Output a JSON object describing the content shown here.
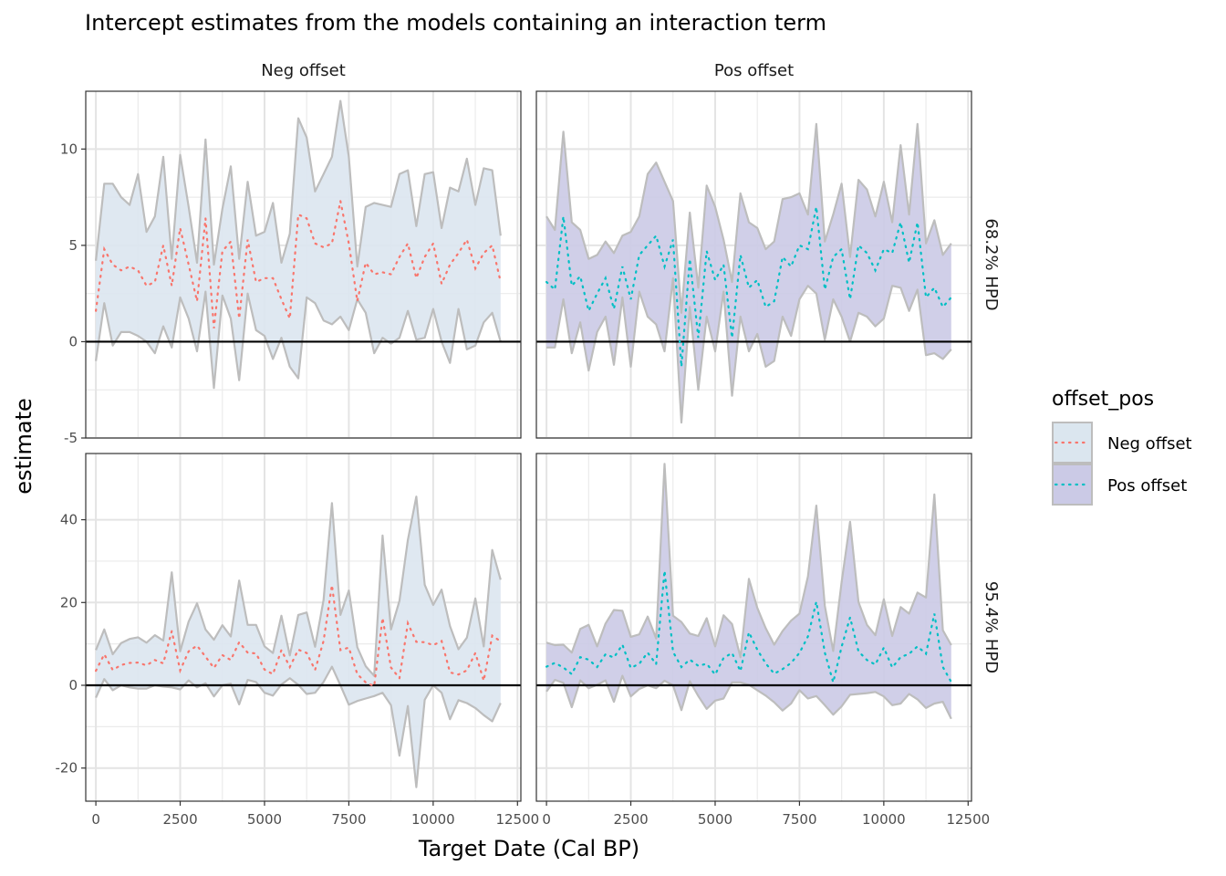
{
  "chart_data": {
    "type": "area",
    "title": "Intercept estimates from the models containing an interaction term",
    "xlabel": "Target Date (Cal BP)",
    "ylabel": "estimate",
    "col_facets": [
      "Neg offset",
      "Pos offset"
    ],
    "row_facets": [
      "68.2% HPD",
      "95.4% HPD"
    ],
    "xlim": [
      -300,
      12600
    ],
    "x_ticks": [
      "0",
      "2500",
      "5000",
      "7500",
      "10000",
      "12500"
    ],
    "grid": true,
    "hline_y": 0,
    "legend": {
      "title": "offset_pos",
      "placement": "right",
      "entries": [
        {
          "label": "Neg offset",
          "fill": "#dbe6ef",
          "line": "#f8766d"
        },
        {
          "label": "Pos offset",
          "fill": "#cbcae6",
          "line": "#00bfc4"
        }
      ]
    },
    "colors": {
      "band_stroke": "#bdbdbd",
      "neg_line": "#f8766d",
      "pos_line": "#00bfc4",
      "neg_fill": "#dbe6ef",
      "pos_fill": "#cbcae6",
      "zero_line": "#000000"
    },
    "panels": [
      {
        "row": 0,
        "col": 0,
        "series": "Neg offset",
        "ylim": [
          -5,
          13
        ],
        "y_ticks": [
          "-5",
          "0",
          "5",
          "10"
        ],
        "x": [
          0,
          250,
          500,
          750,
          1000,
          1250,
          1500,
          1750,
          2000,
          2250,
          2500,
          2750,
          3000,
          3250,
          3500,
          3750,
          4000,
          4250,
          4500,
          4750,
          5000,
          5250,
          5500,
          5750,
          6000,
          6250,
          6500,
          6750,
          7000,
          7250,
          7500,
          7750,
          8000,
          8250,
          8500,
          8750,
          9000,
          9250,
          9500,
          9750,
          10000,
          10250,
          10500,
          10750,
          11000,
          11250,
          11500,
          11750,
          12000
        ],
        "lower": [
          -1,
          2,
          -0.2,
          0.5,
          0.5,
          0.3,
          0,
          -0.6,
          0.8,
          -0.3,
          2.3,
          1.2,
          -0.5,
          2.6,
          -2.4,
          2.4,
          1.2,
          -2,
          2.5,
          0.6,
          0.3,
          -0.9,
          0.2,
          -1.3,
          -1.9,
          2.3,
          2.0,
          1.1,
          0.9,
          1.3,
          0.6,
          2.2,
          1.5,
          -0.6,
          0.2,
          -0.1,
          0.2,
          1.6,
          0.1,
          0.2,
          1.7,
          0,
          -1.1,
          1.7,
          -0.4,
          -0.2,
          1,
          1.5,
          0
        ],
        "upper": [
          4.2,
          8.2,
          8.2,
          7.5,
          7.1,
          8.7,
          5.7,
          6.5,
          9.6,
          4.3,
          9.7,
          7,
          4.1,
          10.5,
          4,
          6.9,
          9.1,
          4.3,
          8.3,
          5.5,
          5.7,
          7.2,
          4.1,
          5.6,
          11.6,
          10.6,
          7.8,
          8.7,
          9.6,
          12.5,
          9.6,
          3.9,
          7,
          7.2,
          7.1,
          7,
          8.7,
          8.9,
          6,
          8.7,
          8.8,
          5.9,
          8,
          7.8,
          9.5,
          7.1,
          9,
          8.9,
          5.5
        ],
        "mid": [
          1.6,
          4.8,
          4.0,
          3.7,
          3.9,
          3.7,
          2.9,
          3.1,
          5.0,
          2.9,
          5.9,
          4.0,
          2.1,
          6.4,
          0.7,
          4.7,
          5.2,
          1.2,
          5.3,
          3.1,
          3.3,
          3.3,
          2.2,
          1.2,
          6.6,
          6.4,
          5.1,
          4.9,
          5.1,
          7.3,
          5.1,
          2.1,
          4.1,
          3.5,
          3.6,
          3.5,
          4.4,
          5.1,
          3.3,
          4.4,
          5.1,
          3.0,
          4.0,
          4.6,
          5.3,
          3.8,
          4.6,
          5.0,
          3.1
        ]
      },
      {
        "row": 0,
        "col": 1,
        "series": "Pos offset",
        "ylim": [
          -5,
          13
        ],
        "y_ticks": [
          "-5",
          "0",
          "5",
          "10"
        ],
        "x": [
          0,
          250,
          500,
          750,
          1000,
          1250,
          1500,
          1750,
          2000,
          2250,
          2500,
          2750,
          3000,
          3250,
          3500,
          3750,
          4000,
          4250,
          4500,
          4750,
          5000,
          5250,
          5500,
          5750,
          6000,
          6250,
          6500,
          6750,
          7000,
          7250,
          7500,
          7750,
          8000,
          8250,
          8500,
          8750,
          9000,
          9250,
          9500,
          9750,
          10000,
          10250,
          10500,
          10750,
          11000,
          11250,
          11500,
          11750,
          12000
        ],
        "lower": [
          -0.3,
          -0.3,
          2.2,
          -0.6,
          1,
          -1.5,
          0.5,
          1.3,
          -1.2,
          2.3,
          -1.3,
          2.6,
          1.3,
          0.9,
          -0.5,
          3.3,
          -4.2,
          1.8,
          -2.5,
          1.3,
          -0.5,
          2.6,
          -2.8,
          1.3,
          -0.5,
          0.4,
          -1.3,
          -1.0,
          1.3,
          0.3,
          2.2,
          2.9,
          2.5,
          0.1,
          2.2,
          1.3,
          0,
          1.5,
          1.3,
          0.8,
          1.2,
          2.9,
          2.8,
          1.6,
          2.7,
          -0.7,
          -0.6,
          -0.9,
          -0.4
        ],
        "upper": [
          6.5,
          5.8,
          10.9,
          6.2,
          5.8,
          4.3,
          4.5,
          5.2,
          4.6,
          5.5,
          5.7,
          6.5,
          8.7,
          9.3,
          8.3,
          7.3,
          1.5,
          6.7,
          2.8,
          8.1,
          7,
          5.3,
          3.1,
          7.7,
          6.2,
          5.9,
          4.8,
          5.2,
          7.4,
          7.5,
          7.7,
          6.6,
          11.3,
          5.2,
          6.6,
          8.2,
          4.4,
          8.4,
          7.9,
          6.5,
          8.3,
          6.2,
          10.2,
          6.6,
          11.3,
          5.1,
          6.3,
          4.5,
          5.1
        ],
        "mid": [
          3.1,
          2.7,
          6.5,
          2.9,
          3.4,
          1.6,
          2.5,
          3.3,
          1.7,
          3.9,
          2.2,
          4.5,
          5.0,
          5.5,
          3.9,
          5.3,
          -1.3,
          4.3,
          0.2,
          4.7,
          3.2,
          4.0,
          0.2,
          4.5,
          2.8,
          3.2,
          1.8,
          2.1,
          4.4,
          3.9,
          5.0,
          4.8,
          7.0,
          2.7,
          4.4,
          4.8,
          2.2,
          5.0,
          4.6,
          3.7,
          4.8,
          4.6,
          6.2,
          4.1,
          6.2,
          2.3,
          2.8,
          1.8,
          2.3
        ]
      },
      {
        "row": 1,
        "col": 0,
        "series": "Neg offset",
        "ylim": [
          -28,
          56
        ],
        "y_ticks": [
          "-20",
          "0",
          "20",
          "40"
        ],
        "x": [
          0,
          250,
          500,
          750,
          1000,
          1250,
          1500,
          1750,
          2000,
          2250,
          2500,
          2750,
          3000,
          3250,
          3500,
          3750,
          4000,
          4250,
          4500,
          4750,
          5000,
          5250,
          5500,
          5750,
          6000,
          6250,
          6500,
          6750,
          7000,
          7250,
          7500,
          7750,
          8000,
          8250,
          8500,
          8750,
          9000,
          9250,
          9500,
          9750,
          10000,
          10250,
          10500,
          10750,
          11000,
          11250,
          11500,
          11750,
          12000
        ],
        "lower": [
          -3,
          1.5,
          -1.2,
          0,
          -0.5,
          -0.8,
          -0.8,
          0,
          -0.3,
          -0.5,
          -1,
          1.2,
          -0.5,
          0.5,
          -2.7,
          0,
          0.4,
          -4.6,
          1.3,
          0.8,
          -1.8,
          -2.5,
          0.2,
          1.7,
          0.1,
          -2.1,
          -1.8,
          0.8,
          4.5,
          0,
          -4.7,
          -3.8,
          -3.2,
          -2.6,
          -1.8,
          -4.8,
          -17,
          -5,
          -24.6,
          -3.5,
          0,
          -1.8,
          -8.2,
          -3.6,
          -4.3,
          -5.5,
          -7.2,
          -8.7,
          -4.3
        ],
        "upper": [
          8.5,
          13.5,
          7.5,
          10.2,
          11.2,
          11.6,
          10.3,
          12.1,
          10.8,
          27.3,
          8.2,
          15.4,
          19.8,
          13.5,
          11.0,
          14.5,
          11.8,
          25.3,
          14.6,
          14.6,
          9.4,
          7.8,
          16.8,
          7.2,
          17.0,
          17.6,
          9.3,
          20.6,
          44.0,
          17.0,
          22.9,
          9.2,
          4.6,
          2.3,
          36.2,
          13.5,
          20.4,
          35.1,
          45.6,
          24.3,
          19.4,
          23.1,
          14.3,
          8.7,
          11.5,
          21.0,
          9.4,
          32.7,
          25.5
        ],
        "mid": [
          3.5,
          7.5,
          3.7,
          4.9,
          5.4,
          5.5,
          4.8,
          6.1,
          5.3,
          13.1,
          3.6,
          8.2,
          9.6,
          6.9,
          4.2,
          7.3,
          6.1,
          10.4,
          7.9,
          7.7,
          3.8,
          2.7,
          8.5,
          4.4,
          8.6,
          7.8,
          3.7,
          10.7,
          24.2,
          8.5,
          9.1,
          2.7,
          0.7,
          -0.2,
          16.3,
          4.3,
          1.7,
          15.0,
          10.5,
          10.4,
          9.7,
          10.7,
          3.1,
          2.6,
          3.6,
          7.8,
          1.1,
          12.0,
          10.6
        ]
      },
      {
        "row": 1,
        "col": 1,
        "series": "Pos offset",
        "ylim": [
          -28,
          56
        ],
        "y_ticks": [
          "-20",
          "0",
          "20",
          "40"
        ],
        "x": [
          0,
          250,
          500,
          750,
          1000,
          1250,
          1500,
          1750,
          2000,
          2250,
          2500,
          2750,
          3000,
          3250,
          3500,
          3750,
          4000,
          4250,
          4500,
          4750,
          5000,
          5250,
          5500,
          5750,
          6000,
          6250,
          6500,
          6750,
          7000,
          7250,
          7500,
          7750,
          8000,
          8250,
          8500,
          8750,
          9000,
          9250,
          9500,
          9750,
          10000,
          10250,
          10500,
          10750,
          11000,
          11250,
          11500,
          11750,
          12000
        ],
        "lower": [
          -1.5,
          1.3,
          0.6,
          -5.3,
          1.2,
          -0.7,
          0.1,
          1.2,
          -4.0,
          2.3,
          -2.7,
          -0.9,
          0,
          -0.7,
          1.1,
          0.0,
          -6.0,
          1.0,
          -2.6,
          -5.7,
          -3.7,
          -3.2,
          0.7,
          0.7,
          0.1,
          -1.2,
          -2.5,
          -4.1,
          -6.1,
          -4.4,
          -1.2,
          -3.2,
          -2.6,
          -4.8,
          -7.1,
          -5.1,
          -2.3,
          -2.1,
          -1.9,
          -1.6,
          -2.7,
          -4.8,
          -4.4,
          -2.1,
          -3.4,
          -5.5,
          -4.4,
          -4.0,
          -8.1
        ],
        "upper": [
          10.3,
          9.7,
          9.8,
          7.9,
          13.6,
          14.6,
          9.4,
          14.9,
          18.2,
          18.0,
          11.7,
          12.3,
          16.6,
          11.3,
          53.5,
          16.8,
          15.3,
          12.5,
          11.9,
          16.2,
          9.4,
          16.9,
          14.8,
          6.8,
          25.7,
          18.7,
          13.8,
          9.8,
          13.1,
          15.6,
          17.3,
          26.3,
          43.4,
          19.2,
          8.3,
          24.9,
          39.5,
          20.1,
          14.6,
          12.1,
          20.8,
          11.9,
          18.9,
          17.3,
          22.4,
          21.2,
          46.1,
          13.3,
          9.7
        ],
        "mid": [
          4.5,
          5.4,
          4.3,
          2.7,
          6.8,
          6.2,
          4.4,
          7.5,
          6.7,
          9.8,
          4.2,
          5.2,
          7.9,
          5.1,
          27.7,
          8.1,
          4.4,
          6.2,
          4.7,
          5.2,
          2.6,
          6.6,
          7.8,
          3.4,
          12.8,
          8.6,
          5.3,
          2.8,
          3.9,
          5.4,
          7.8,
          11.8,
          20.2,
          7.9,
          0.7,
          9.3,
          16.4,
          8.2,
          6.1,
          5.0,
          9.1,
          4.3,
          6.8,
          7.6,
          9.4,
          7.6,
          17.3,
          4.4,
          0.8
        ]
      }
    ]
  }
}
